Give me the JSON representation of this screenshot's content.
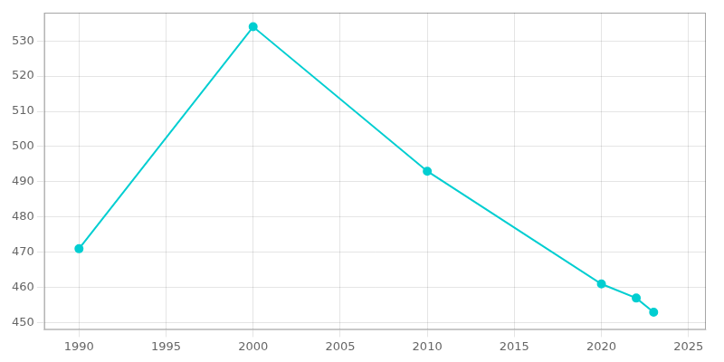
{
  "chart_data": {
    "type": "line",
    "x": [
      1990,
      2000,
      2010,
      2020,
      2022,
      2023
    ],
    "values": [
      471,
      534,
      493,
      461,
      457,
      453
    ],
    "color": "#00CED1",
    "marker": "circle",
    "xlim": [
      1988,
      2026
    ],
    "ylim": [
      448,
      538
    ],
    "xticks": [
      1990,
      1995,
      2000,
      2005,
      2010,
      2015,
      2020,
      2025
    ],
    "yticks": [
      450,
      460,
      470,
      480,
      490,
      500,
      510,
      520,
      530
    ],
    "grid": true
  }
}
